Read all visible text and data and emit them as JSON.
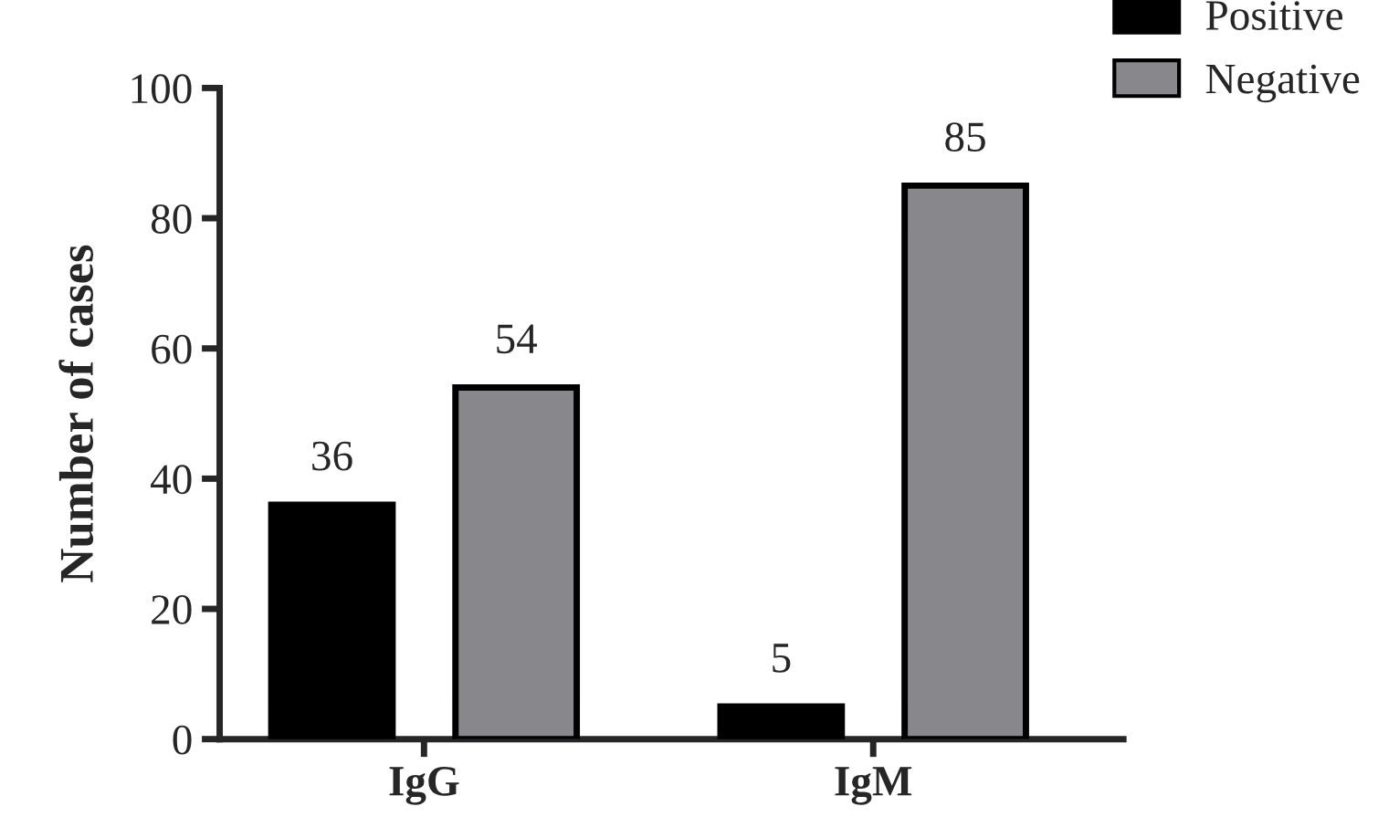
{
  "chart_data": {
    "type": "bar",
    "ylabel": "Number of cases",
    "categories": [
      "IgG",
      "IgM"
    ],
    "series": [
      {
        "name": "Positive",
        "color": "#000000",
        "values": [
          36,
          5
        ]
      },
      {
        "name": "Negative",
        "color": "#88878c",
        "values": [
          54,
          85
        ]
      }
    ],
    "ylim": [
      0,
      100
    ],
    "yticks": [
      0,
      20,
      40,
      60,
      80,
      100
    ],
    "data_labels": true,
    "legend": "top right",
    "grid": false
  }
}
